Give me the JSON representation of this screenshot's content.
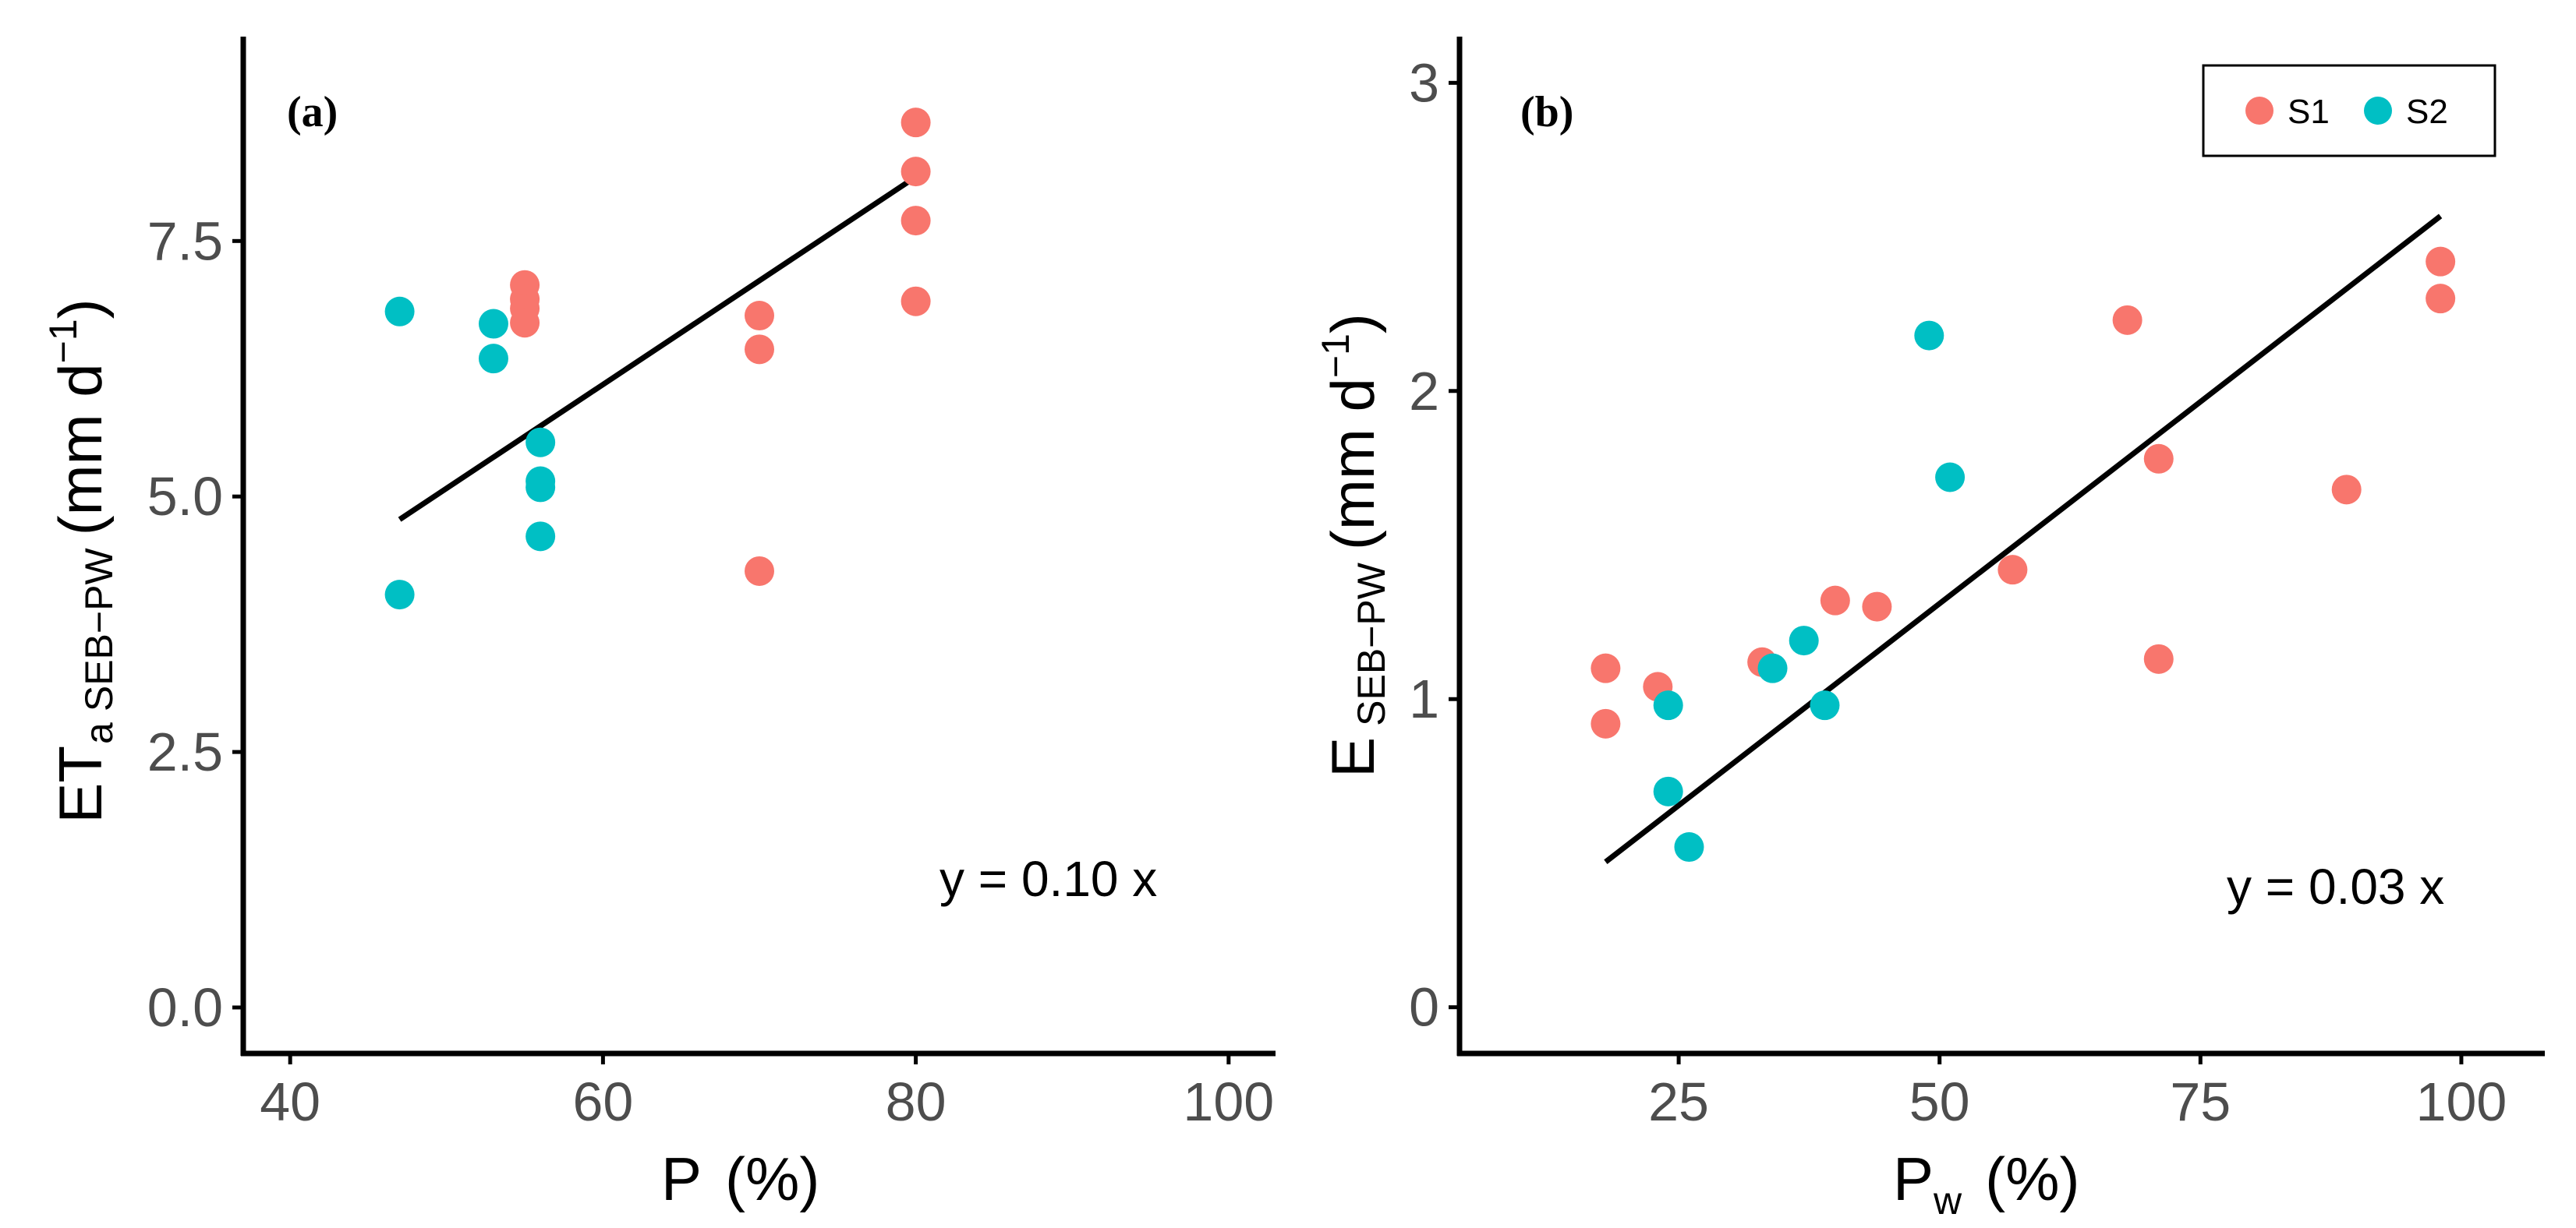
{
  "colors": {
    "S1": "#F8766D",
    "S2": "#00BFC4",
    "axis": "#000000",
    "tick_text": "#4d4d4d"
  },
  "chart_data": [
    {
      "type": "scatter",
      "panel_label": "(a)",
      "xlabel": {
        "main": "P",
        "sub": "",
        "unit": "(%)"
      },
      "ylabel": {
        "main": "ET",
        "sub1": "a",
        "sub2": "SEB−PW",
        "unit_open": "(mm d",
        "sup": "−1",
        "unit_close": ")"
      },
      "xlim": [
        37,
        103
      ],
      "ylim": [
        -0.45,
        9.5
      ],
      "xticks": [
        40,
        60,
        80,
        100
      ],
      "xtick_labels": [
        "40",
        "60",
        "80",
        "100"
      ],
      "yticks": [
        0,
        2.5,
        5,
        7.5
      ],
      "ytick_labels": [
        "0.0",
        "2.5",
        "5.0",
        "7.5"
      ],
      "equation": "y = 0.10 x",
      "fit": {
        "slope": 0.1016,
        "x_range": [
          47,
          80
        ]
      },
      "series": [
        {
          "name": "S1",
          "points": [
            [
              55,
              7.07
            ],
            [
              55,
              6.93
            ],
            [
              55,
              6.84
            ],
            [
              55,
              6.7
            ],
            [
              70,
              6.77
            ],
            [
              70,
              6.44
            ],
            [
              70,
              4.27
            ],
            [
              80,
              8.66
            ],
            [
              80,
              8.18
            ],
            [
              80,
              7.7
            ],
            [
              80,
              6.91
            ]
          ]
        },
        {
          "name": "S2",
          "points": [
            [
              47,
              6.81
            ],
            [
              47,
              4.04
            ],
            [
              53,
              6.69
            ],
            [
              53,
              6.35
            ],
            [
              56,
              5.53
            ],
            [
              56,
              5.15
            ],
            [
              56,
              5.09
            ],
            [
              56,
              4.61
            ]
          ]
        }
      ]
    },
    {
      "type": "scatter",
      "panel_label": "(b)",
      "xlabel": {
        "main": "P",
        "sub": "w",
        "unit": "(%)"
      },
      "ylabel": {
        "main": "E",
        "sub1": "",
        "sub2": "SEB−PW",
        "unit_open": "(mm d",
        "sup": "−1",
        "unit_close": ")"
      },
      "xlim": [
        4,
        108
      ],
      "ylim": [
        -0.15,
        3.15
      ],
      "xticks": [
        25,
        50,
        75,
        100
      ],
      "xtick_labels": [
        "25",
        "50",
        "75",
        "100"
      ],
      "yticks": [
        0,
        1,
        2,
        3
      ],
      "ytick_labels": [
        "0",
        "1",
        "2",
        "3"
      ],
      "equation": "y = 0.03 x",
      "fit": {
        "slope": 0.0262,
        "x_range": [
          18,
          98
        ]
      },
      "legend": {
        "position": "top-right",
        "entries": [
          "S1",
          "S2"
        ]
      },
      "series": [
        {
          "name": "S1",
          "points": [
            [
              18,
              1.1
            ],
            [
              18,
              0.92
            ],
            [
              23,
              1.04
            ],
            [
              33,
              1.12
            ],
            [
              40,
              1.32
            ],
            [
              44,
              1.3
            ],
            [
              57,
              1.42
            ],
            [
              68,
              2.23
            ],
            [
              71,
              1.78
            ],
            [
              71,
              1.13
            ],
            [
              89,
              1.68
            ],
            [
              98,
              2.42
            ],
            [
              98,
              2.3
            ]
          ]
        },
        {
          "name": "S2",
          "points": [
            [
              24,
              0.98
            ],
            [
              24,
              0.7
            ],
            [
              26,
              0.52
            ],
            [
              34,
              1.1
            ],
            [
              37,
              1.19
            ],
            [
              39,
              0.98
            ],
            [
              49,
              2.18
            ],
            [
              51,
              1.72
            ]
          ]
        }
      ]
    }
  ]
}
